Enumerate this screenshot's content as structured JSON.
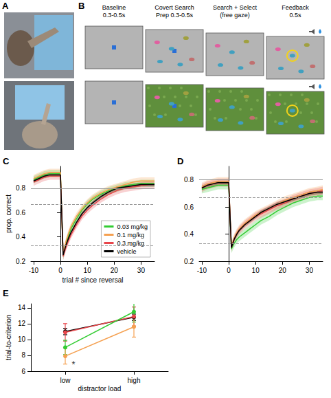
{
  "panels": [
    "A",
    "B",
    "C",
    "D",
    "E"
  ],
  "diagram": {
    "steps": [
      {
        "lines": [
          "Baseline",
          "0.3-0.5s"
        ]
      },
      {
        "lines": [
          "Covert Search",
          "Prep 0.3-0.5s"
        ]
      },
      {
        "lines": [
          "Search + Select",
          "(free gaze)"
        ]
      },
      {
        "lines": [
          "Feedback",
          "0.5s"
        ]
      }
    ]
  },
  "chart_data": [
    {
      "type": "line",
      "x": [
        -10,
        -8,
        -6,
        -4,
        -2,
        0,
        1,
        2,
        3,
        4,
        6,
        8,
        10,
        12,
        15,
        18,
        21,
        24,
        27,
        30,
        33,
        35
      ],
      "xlim": [
        -11,
        35
      ],
      "xticks": [
        -10,
        0,
        10,
        20,
        30
      ],
      "ylim": [
        0.2,
        0.98
      ],
      "yticks": [
        0.2,
        0.4,
        0.6,
        0.8
      ],
      "x_label": "trial # since reversal",
      "y_label": "prop. correct",
      "legend": "bottom-right",
      "hlines": [
        {
          "value": 0.8,
          "line_style": "solid"
        },
        {
          "value": 0.667,
          "line_style": "dashed"
        },
        {
          "value": 0.333,
          "line_style": "dashed"
        }
      ],
      "series": [
        {
          "name": "0.03 mg/kg",
          "color": "#33cc33",
          "error": 0.03,
          "values": [
            0.87,
            0.89,
            0.91,
            0.92,
            0.92,
            0.92,
            0.24,
            0.34,
            0.41,
            0.47,
            0.55,
            0.62,
            0.67,
            0.71,
            0.75,
            0.78,
            0.8,
            0.82,
            0.83,
            0.84,
            0.84,
            0.84
          ]
        },
        {
          "name": "0.1 mg/kg",
          "color": "#f5a050",
          "error": 0.03,
          "values": [
            0.88,
            0.9,
            0.92,
            0.93,
            0.93,
            0.93,
            0.26,
            0.36,
            0.43,
            0.49,
            0.57,
            0.63,
            0.68,
            0.72,
            0.76,
            0.79,
            0.81,
            0.83,
            0.85,
            0.86,
            0.86,
            0.86
          ]
        },
        {
          "name": "0.3 mg/kg",
          "color": "#e8464b",
          "error": 0.03,
          "values": [
            0.85,
            0.87,
            0.89,
            0.9,
            0.9,
            0.9,
            0.24,
            0.31,
            0.37,
            0.42,
            0.5,
            0.57,
            0.62,
            0.66,
            0.71,
            0.75,
            0.78,
            0.8,
            0.81,
            0.82,
            0.83,
            0.83
          ]
        },
        {
          "name": "vehicle",
          "color": "#000000",
          "error": 0.015,
          "values": [
            0.86,
            0.88,
            0.9,
            0.91,
            0.91,
            0.91,
            0.25,
            0.33,
            0.39,
            0.44,
            0.52,
            0.59,
            0.64,
            0.68,
            0.73,
            0.77,
            0.8,
            0.81,
            0.82,
            0.83,
            0.83,
            0.83
          ]
        }
      ]
    },
    {
      "type": "line",
      "x": [
        -10,
        -8,
        -6,
        -4,
        -2,
        0,
        1,
        2,
        3,
        4,
        6,
        8,
        10,
        12,
        15,
        18,
        21,
        24,
        27,
        30,
        33,
        35
      ],
      "xlim": [
        -11,
        35
      ],
      "xticks": [
        -10,
        0,
        10,
        20,
        30
      ],
      "ylim": [
        0.2,
        0.9
      ],
      "yticks": [
        0.2,
        0.4,
        0.6,
        0.8
      ],
      "hlines": [
        {
          "value": 0.8,
          "line_style": "solid"
        },
        {
          "value": 0.667,
          "line_style": "dashed"
        },
        {
          "value": 0.333,
          "line_style": "dashed"
        }
      ],
      "series": [
        {
          "name": "0.03 mg/kg",
          "color": "#33cc33",
          "error": 0.03,
          "values": [
            0.73,
            0.74,
            0.75,
            0.76,
            0.76,
            0.76,
            0.29,
            0.33,
            0.36,
            0.38,
            0.41,
            0.44,
            0.47,
            0.5,
            0.53,
            0.57,
            0.6,
            0.63,
            0.65,
            0.67,
            0.68,
            0.68
          ]
        },
        {
          "name": "0.1 mg/kg",
          "color": "#f5a050",
          "error": 0.03,
          "values": [
            0.75,
            0.77,
            0.78,
            0.79,
            0.79,
            0.79,
            0.31,
            0.37,
            0.41,
            0.44,
            0.48,
            0.51,
            0.54,
            0.56,
            0.59,
            0.62,
            0.65,
            0.67,
            0.69,
            0.71,
            0.72,
            0.73
          ]
        },
        {
          "name": "0.3 mg/kg",
          "color": "#e8464b",
          "error": 0.03,
          "values": [
            0.74,
            0.76,
            0.77,
            0.78,
            0.78,
            0.78,
            0.3,
            0.36,
            0.4,
            0.43,
            0.47,
            0.5,
            0.53,
            0.55,
            0.58,
            0.61,
            0.63,
            0.66,
            0.68,
            0.7,
            0.71,
            0.72
          ]
        },
        {
          "name": "vehicle",
          "color": "#000000",
          "error": 0.015,
          "values": [
            0.74,
            0.76,
            0.77,
            0.78,
            0.78,
            0.78,
            0.3,
            0.36,
            0.4,
            0.43,
            0.47,
            0.5,
            0.53,
            0.56,
            0.59,
            0.62,
            0.64,
            0.66,
            0.68,
            0.7,
            0.71,
            0.71
          ]
        }
      ]
    },
    {
      "type": "line",
      "categories": [
        "low",
        "high"
      ],
      "x_label": "distractor load",
      "y_label": "trial-to-criterion",
      "ylim": [
        6,
        14.5
      ],
      "yticks": [
        6,
        8,
        10,
        12,
        14
      ],
      "marker": "circle",
      "series": [
        {
          "name": "vehicle",
          "color": "#000000",
          "values": [
            11.0,
            12.8
          ],
          "errors": [
            0.4,
            0.4
          ]
        },
        {
          "name": "0.3 mg/kg",
          "color": "#e8464b",
          "values": [
            10.9,
            12.9
          ],
          "errors": [
            1.1,
            1.2
          ]
        },
        {
          "name": "0.03 mg/kg",
          "color": "#33cc33",
          "values": [
            9.0,
            13.5
          ],
          "errors": [
            0.9,
            1.3
          ]
        },
        {
          "name": "0.1 mg/kg",
          "color": "#f5a050",
          "values": [
            7.9,
            11.6
          ],
          "errors": [
            1.0,
            1.3
          ]
        }
      ],
      "annotations": [
        {
          "text": "*",
          "x": "low",
          "y": 7.0
        }
      ]
    }
  ]
}
